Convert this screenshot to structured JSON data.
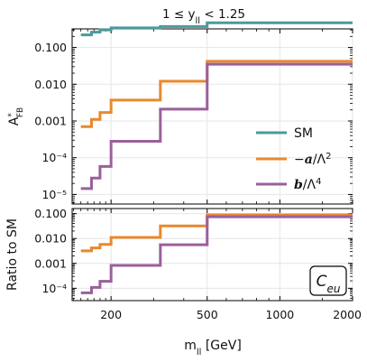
{
  "chart_data": [
    {
      "type": "line",
      "panel": "top",
      "title": "1 ≤ y_ll < 1.25",
      "ylabel": "A*_FB",
      "xlabel": "",
      "xscale": "log",
      "yscale": "log",
      "xlim": [
        138,
        2000
      ],
      "ylim": [
        5.5e-06,
        0.32
      ],
      "grid": true,
      "legend_position": "right",
      "bin_edges": [
        150,
        166,
        180,
        200,
        320,
        500,
        2000
      ],
      "series": [
        {
          "name": "SM",
          "color": "#4a9a9e",
          "values": [
            0.22,
            0.26,
            0.3,
            0.34,
            0.37,
            0.47
          ]
        },
        {
          "name": "−a/Λ²",
          "color": "#e8892e",
          "values": [
            0.0007,
            0.0011,
            0.0017,
            0.0037,
            0.012,
            0.042
          ]
        },
        {
          "name": "b/Λ⁴",
          "color": "#9b5f9c",
          "values": [
            1.45e-05,
            2.8e-05,
            5.8e-05,
            0.00028,
            0.0021,
            0.035
          ]
        }
      ],
      "yticks": [
        {
          "v": 0.1,
          "label": "0.100"
        },
        {
          "v": 0.01,
          "label": "0.010"
        },
        {
          "v": 0.001,
          "label": "0.001"
        },
        {
          "v": 0.0001,
          "label": "10⁻⁴"
        },
        {
          "v": 1e-05,
          "label": "10⁻⁵"
        }
      ]
    },
    {
      "type": "line",
      "panel": "bottom",
      "xlabel": "m_ll [GeV]",
      "ylabel": "Ratio to SM",
      "xscale": "log",
      "yscale": "log",
      "xlim": [
        138,
        2000
      ],
      "ylim": [
        3.2e-05,
        0.16
      ],
      "grid": true,
      "annotation": "C_eu",
      "bin_edges": [
        150,
        166,
        180,
        200,
        320,
        500,
        2000
      ],
      "series": [
        {
          "name": "−a/Λ²",
          "color": "#e8892e",
          "values": [
            0.0032,
            0.0042,
            0.0058,
            0.011,
            0.032,
            0.089
          ]
        },
        {
          "name": "b/Λ⁴",
          "color": "#9b5f9c",
          "values": [
            6.6e-05,
            0.000108,
            0.00019,
            0.00083,
            0.0056,
            0.075
          ]
        }
      ],
      "yticks": [
        {
          "v": 0.1,
          "label": "0.100"
        },
        {
          "v": 0.01,
          "label": "0.010"
        },
        {
          "v": 0.001,
          "label": "0.001"
        },
        {
          "v": 0.0001,
          "label": "10⁻⁴"
        }
      ],
      "xticks": [
        {
          "v": 200,
          "label": "200"
        },
        {
          "v": 500,
          "label": "500"
        },
        {
          "v": 1000,
          "label": "1000"
        },
        {
          "v": 2000,
          "label": "2000"
        }
      ]
    }
  ],
  "legend": [
    {
      "label": "SM",
      "color": "#4a9a9e"
    },
    {
      "label": "−a/Λ²",
      "color": "#e8892e"
    },
    {
      "label": "b/Λ⁴",
      "color": "#9b5f9c"
    }
  ]
}
